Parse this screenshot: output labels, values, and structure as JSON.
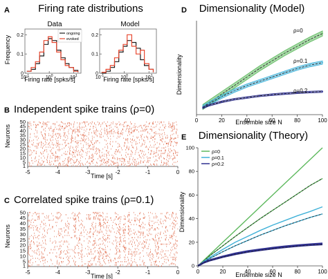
{
  "panels": {
    "A": {
      "letter": "A",
      "title": "Firing rate distributions",
      "left_subtitle": "Data",
      "right_subtitle": "Model",
      "ylabel": "Frequency",
      "xlabel": "Firing rate [spks/s]",
      "yticks": [
        "0",
        "0.1",
        "0.2"
      ],
      "xticks": [
        {
          "base": "10",
          "exp": "-1"
        },
        {
          "base": "10",
          "exp": "0"
        },
        {
          "base": "10",
          "exp": "1"
        }
      ],
      "legend": [
        "ongoing",
        "evoked"
      ]
    },
    "B": {
      "letter": "B",
      "title": "Independent spike trains (ρ=0)",
      "ylabel": "Neurons",
      "xlabel": "Time [s]",
      "yticks": [
        "50",
        "45",
        "40",
        "35",
        "30",
        "25",
        "20",
        "15",
        "10",
        "5",
        "1"
      ],
      "xticks": [
        "-5",
        "-4",
        "-3",
        "-2",
        "-1",
        "0"
      ]
    },
    "C": {
      "letter": "C",
      "title": "Correlated spike trains (ρ=0.1)",
      "ylabel": "Neurons",
      "xlabel": "Time [s]",
      "yticks": [
        "50",
        "45",
        "40",
        "35",
        "30",
        "25",
        "20",
        "15",
        "10",
        "5",
        "1"
      ],
      "xticks": [
        "-5",
        "-4",
        "-3",
        "-2",
        "-1",
        "0"
      ]
    },
    "D": {
      "letter": "D",
      "title": "Dimensionality (Model)",
      "ylabel": "Dimensionality",
      "xlabel": "Ensemble size N",
      "xticks": [
        "0",
        "20",
        "40",
        "60",
        "80",
        "100"
      ],
      "curve_labels": [
        "ρ=0",
        "ρ=0.1",
        "ρ=0.2"
      ]
    },
    "E": {
      "letter": "E",
      "title": "Dimensionality (Theory)",
      "ylabel": "Dimensionality",
      "xlabel": "Ensemble size N",
      "xticks": [
        "0",
        "20",
        "40",
        "60",
        "80",
        "100"
      ],
      "yticks": [
        "0",
        "20",
        "40",
        "60",
        "80",
        "100"
      ],
      "legend": [
        "ρ=0",
        "ρ=0.1",
        "ρ=0.2"
      ]
    }
  },
  "colors": {
    "ongoing": "#1a1a1a",
    "evoked": "#e8472f",
    "rho0": "#5cb85c",
    "rho01": "#3fb1d8",
    "rho02": "#2e2f8f",
    "spikes": "#e06a4a"
  },
  "chart_data": [
    {
      "id": "A-data",
      "type": "line",
      "xscale": "log",
      "xlim": [
        0.1,
        20
      ],
      "ylim": [
        0,
        0.23
      ],
      "x": [
        0.12,
        0.18,
        0.27,
        0.4,
        0.6,
        0.9,
        1.3,
        2.0,
        3.0,
        4.5,
        6.5,
        10,
        15
      ],
      "series": [
        {
          "name": "ongoing",
          "values": [
            0.01,
            0.02,
            0.05,
            0.09,
            0.15,
            0.18,
            0.17,
            0.12,
            0.08,
            0.05,
            0.03,
            0.015,
            0.005
          ]
        },
        {
          "name": "evoked",
          "values": [
            0.01,
            0.03,
            0.06,
            0.11,
            0.17,
            0.19,
            0.16,
            0.11,
            0.07,
            0.04,
            0.03,
            0.01,
            0.005
          ]
        }
      ]
    },
    {
      "id": "A-model",
      "type": "line",
      "xscale": "log",
      "xlim": [
        0.1,
        20
      ],
      "ylim": [
        0,
        0.23
      ],
      "x": [
        0.12,
        0.18,
        0.27,
        0.4,
        0.6,
        0.9,
        1.3,
        2.0,
        3.0,
        4.5,
        6.5,
        10,
        15
      ],
      "series": [
        {
          "name": "ongoing",
          "values": [
            0.0,
            0.01,
            0.03,
            0.06,
            0.11,
            0.14,
            0.17,
            0.16,
            0.13,
            0.07,
            0.04,
            0.02,
            0.005
          ]
        },
        {
          "name": "evoked",
          "values": [
            0.005,
            0.02,
            0.04,
            0.08,
            0.12,
            0.15,
            0.2,
            0.14,
            0.1,
            0.12,
            0.05,
            0.02,
            0.005
          ]
        }
      ]
    },
    {
      "id": "D",
      "type": "line",
      "x": [
        5,
        10,
        20,
        30,
        40,
        50,
        60,
        70,
        80,
        90,
        100
      ],
      "xlim": [
        0,
        100
      ],
      "ylim": [
        0,
        55
      ],
      "series": [
        {
          "name": "ρ=0",
          "values": [
            4.5,
            7,
            12,
            17,
            22,
            27,
            31.5,
            36,
            40,
            44,
            47.5
          ],
          "band": 1.5
        },
        {
          "name": "ρ=0.1",
          "values": [
            4.5,
            6.5,
            10.5,
            14,
            17,
            19.5,
            22,
            24.5,
            27,
            29,
            30.5
          ],
          "band": 1.0
        },
        {
          "name": "ρ=0.2",
          "values": [
            4,
            5.5,
            7.5,
            9,
            10,
            11,
            11.7,
            12.3,
            12.8,
            13.2,
            13.5
          ],
          "band": 0.5
        }
      ]
    },
    {
      "id": "E",
      "type": "line",
      "x": [
        0,
        5,
        10,
        20,
        30,
        40,
        50,
        60,
        70,
        80,
        90,
        100
      ],
      "xlim": [
        0,
        100
      ],
      "ylim": [
        0,
        100
      ],
      "series": [
        {
          "name": "ρ=0",
          "values": [
            0,
            5,
            10,
            20,
            30,
            40,
            50,
            60,
            70,
            80,
            90,
            100
          ]
        },
        {
          "name": "ρ=0",
          "values": [
            0,
            4.5,
            9,
            17,
            25,
            32.5,
            40,
            47,
            54,
            61,
            68,
            74
          ]
        },
        {
          "name": "ρ=0.1",
          "values": [
            0,
            4,
            7.5,
            14,
            20,
            25,
            30,
            34.5,
            38.5,
            42.5,
            46,
            50
          ]
        },
        {
          "name": "ρ=0.1",
          "values": [
            0,
            3.5,
            6.5,
            12,
            17,
            21.5,
            26,
            30,
            34,
            37.5,
            41,
            44
          ]
        },
        {
          "name": "ρ=0.2",
          "values": [
            0,
            3,
            5,
            8,
            10.5,
            12.5,
            14,
            15.3,
            16.5,
            17.5,
            18.3,
            19
          ]
        },
        {
          "name": "ρ=0.2",
          "values": [
            0,
            2.8,
            4.7,
            7.5,
            9.8,
            11.8,
            13.3,
            14.6,
            15.8,
            16.8,
            17.6,
            18.2
          ]
        }
      ]
    }
  ]
}
